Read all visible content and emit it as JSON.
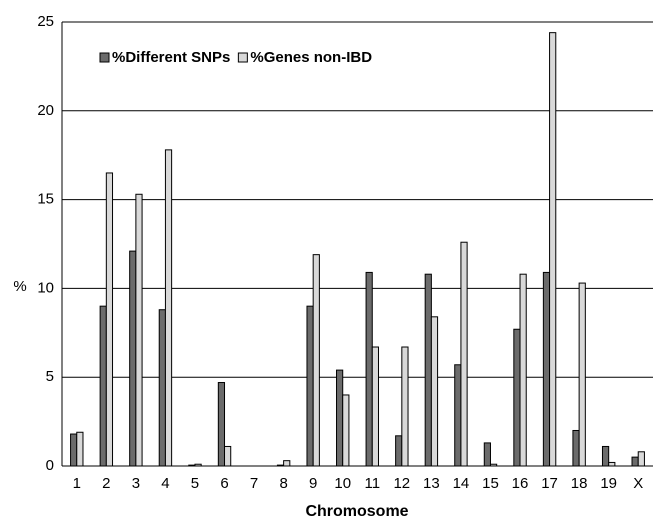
{
  "chart_data": {
    "type": "bar",
    "x_label": "Chromosome",
    "y_label": "%",
    "categories": [
      "1",
      "2",
      "3",
      "4",
      "5",
      "6",
      "7",
      "8",
      "9",
      "10",
      "11",
      "12",
      "13",
      "14",
      "15",
      "16",
      "17",
      "18",
      "19",
      "X"
    ],
    "series": [
      {
        "name": "%Different SNPs",
        "color": "#6b6b6b",
        "values": [
          1.8,
          9.0,
          12.1,
          8.8,
          0.05,
          4.7,
          0,
          0.05,
          9.0,
          5.4,
          10.9,
          1.7,
          10.8,
          5.7,
          1.3,
          7.7,
          10.9,
          2.0,
          1.1,
          0.5
        ]
      },
      {
        "name": "%Genes non-IBD",
        "color": "#d9d9d9",
        "values": [
          1.9,
          16.5,
          15.3,
          17.8,
          0.1,
          1.1,
          0,
          0.3,
          11.9,
          4.0,
          6.7,
          6.7,
          8.4,
          12.6,
          0.1,
          10.8,
          24.4,
          10.3,
          0.2,
          0.8
        ]
      }
    ],
    "ylim": [
      0,
      25
    ],
    "yticks": [
      0,
      5,
      10,
      15,
      20,
      25
    ],
    "grid": true,
    "legend": "top-left"
  }
}
